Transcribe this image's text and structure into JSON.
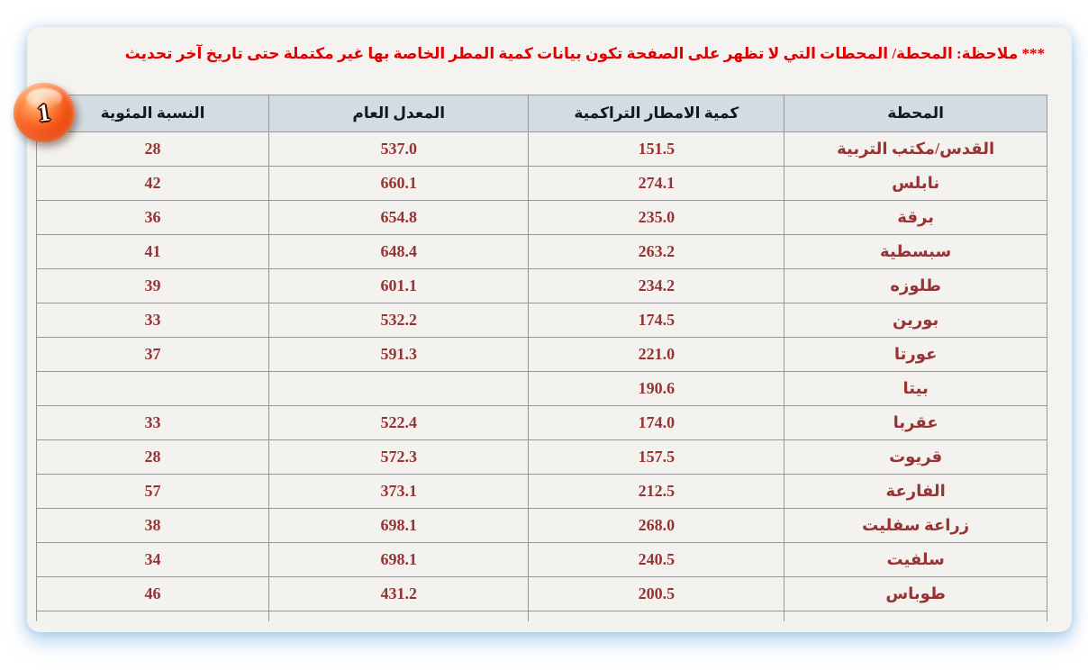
{
  "note": "*** ملاحظة: المحطة/ المحطات التي لا تظهر على الصفحة تكون بيانات كمية المطر الخاصة بها غير مكتملة حتى تاريخ آخر تحديث",
  "badge": {
    "label": "1"
  },
  "colors": {
    "note_red": "#e10000",
    "data_maroon": "#963434",
    "header_bg": "#d3dbe4",
    "panel_bg": "#f4f3f0",
    "badge_red": "#e43c05"
  },
  "table": {
    "headers": {
      "station": "المحطة",
      "rainfall": "كمية الامطار التراكمية",
      "average": "المعدل العام",
      "percentage": "النسبة المئوية"
    },
    "rows": [
      {
        "station": "القدس/مكتب التربية",
        "rainfall": "151.5",
        "average": "537.0",
        "percentage": "28"
      },
      {
        "station": "نابلس",
        "rainfall": "274.1",
        "average": "660.1",
        "percentage": "42"
      },
      {
        "station": "برقة",
        "rainfall": "235.0",
        "average": "654.8",
        "percentage": "36"
      },
      {
        "station": "سبسطية",
        "rainfall": "263.2",
        "average": "648.4",
        "percentage": "41"
      },
      {
        "station": "طلوزه",
        "rainfall": "234.2",
        "average": "601.1",
        "percentage": "39"
      },
      {
        "station": "بورين",
        "rainfall": "174.5",
        "average": "532.2",
        "percentage": "33"
      },
      {
        "station": "عورتا",
        "rainfall": "221.0",
        "average": "591.3",
        "percentage": "37"
      },
      {
        "station": "بيتا",
        "rainfall": "190.6",
        "average": "",
        "percentage": ""
      },
      {
        "station": "عقربا",
        "rainfall": "174.0",
        "average": "522.4",
        "percentage": "33"
      },
      {
        "station": "قريوت",
        "rainfall": "157.5",
        "average": "572.3",
        "percentage": "28"
      },
      {
        "station": "الفارعة",
        "rainfall": "212.5",
        "average": "373.1",
        "percentage": "57"
      },
      {
        "station": "زراعة سفليت",
        "rainfall": "268.0",
        "average": "698.1",
        "percentage": "38"
      },
      {
        "station": "سلفيت",
        "rainfall": "240.5",
        "average": "698.1",
        "percentage": "34"
      },
      {
        "station": "طوباس",
        "rainfall": "200.5",
        "average": "431.2",
        "percentage": "46"
      }
    ]
  }
}
